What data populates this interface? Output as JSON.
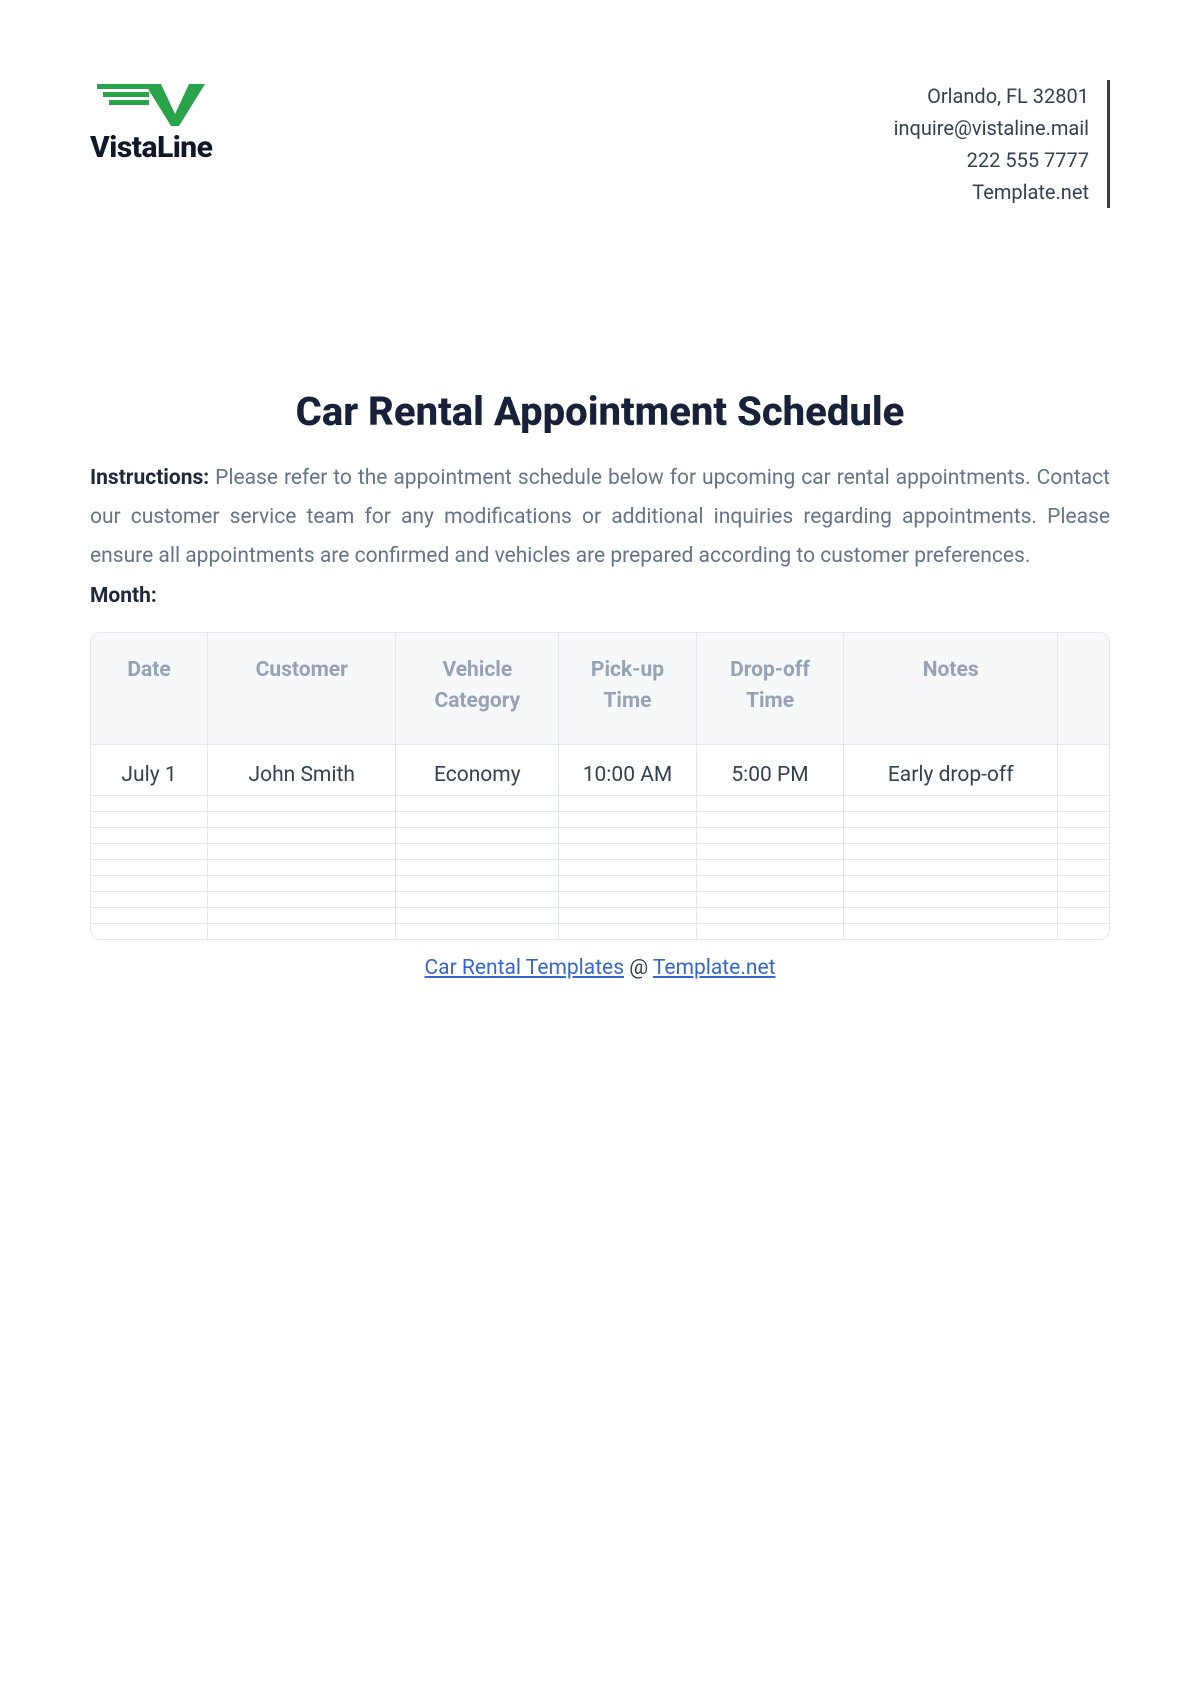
{
  "brand": {
    "name": "VistaLine",
    "logo_color": "#2aa44b",
    "logo_text_color": "#0f172a"
  },
  "contact": {
    "address": "Orlando, FL 32801",
    "email": "inquire@vistaline.mail",
    "phone": "222 555 7777",
    "site": "Template.net"
  },
  "document": {
    "title": "Car Rental Appointment Schedule",
    "instructions_label": "Instructions:",
    "instructions_body": "Please refer to the appointment schedule below for upcoming car rental appointments. Contact our customer service team for any modifications or additional inquiries regarding appointments. Please ensure all appointments are confirmed and vehicles are prepared according to customer preferences.",
    "month_label": "Month:"
  },
  "table": {
    "columns": {
      "date": "Date",
      "customer": "Customer",
      "vehicle": "Vehicle Category",
      "pickup": "Pick-up Time",
      "dropoff": "Drop-off Time",
      "notes": "Notes"
    },
    "row1": {
      "date": "July 1",
      "customer": "John Smith",
      "vehicle": "Economy",
      "pickup": "10:00 AM",
      "dropoff": "5:00 PM",
      "notes": "Early drop-off"
    },
    "empty_row_count": 9,
    "header_bg": "#f6f8fa",
    "border_color": "#e2e8f0",
    "header_text_color": "#94a3b8",
    "cell_text_color": "#334155"
  },
  "footer": {
    "link1_text": "Car Rental Templates",
    "separator": " @ ",
    "link2_text": "Template.net",
    "link_color": "#3665d6"
  }
}
